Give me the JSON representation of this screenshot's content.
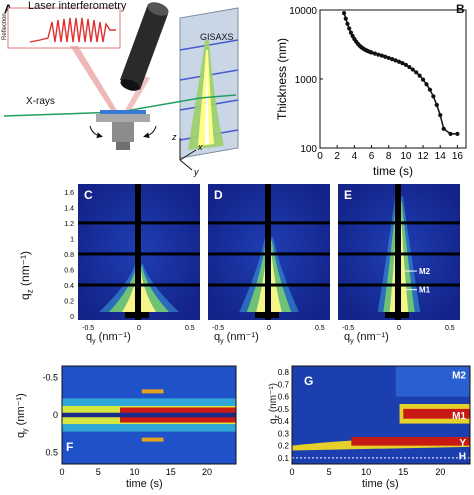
{
  "panels": {
    "A": "A",
    "B": "B",
    "C": "C",
    "D": "D",
    "E": "E",
    "F": "F",
    "G": "G"
  },
  "panel_a": {
    "laser_label": "Laser interferometry",
    "reflection_label": "Reflection",
    "gisaxs_label": "GISAXS",
    "xrays_label": "X-rays",
    "axis_z": "z",
    "axis_x": "x",
    "axis_y": "y"
  },
  "panel_cde": {
    "y_axis_label_main": "q",
    "y_axis_label_sub": "z",
    "y_axis_label_unit": " (nm⁻¹)",
    "x_axis_label_main": "q",
    "x_axis_label_sub": "y",
    "x_axis_label_unit": " (nm⁻¹)",
    "y_ticks": [
      "1.6",
      "1.4",
      "1.2",
      "1",
      "0.8",
      "0.6",
      "0.4",
      "0.2",
      "0"
    ],
    "x_ticks": [
      "-0.5",
      "0",
      "0.5"
    ],
    "marker_m1": "M1",
    "marker_m2": "M2"
  },
  "panel_f": {
    "y_axis_label_main": "q",
    "y_axis_label_sub": "y",
    "y_axis_label_unit": " (nm⁻¹)",
    "y_ticks": [
      "-0.5",
      "0",
      "0.5"
    ],
    "x_ticks": [
      "0",
      "5",
      "10",
      "15",
      "20"
    ],
    "x_label": "time (s)"
  },
  "panel_g": {
    "y_axis_label_main": "q",
    "y_axis_label_sub": "z",
    "y_axis_label_unit": " (nm⁻¹)",
    "y_ticks": [
      "0.8",
      "0.7",
      "0.6",
      "0.5",
      "0.4",
      "0.3",
      "0.2",
      "0.1"
    ],
    "x_ticks": [
      "0",
      "5",
      "10",
      "15",
      "20"
    ],
    "x_label": "time (s)",
    "labels": [
      "M2",
      "M1",
      "Y",
      "H"
    ]
  },
  "chart_data": {
    "type": "scatter",
    "title": "",
    "xlabel": "time (s)",
    "ylabel": "Thickness (nm)",
    "xlim": [
      0,
      17
    ],
    "ylim": [
      100,
      10000
    ],
    "yscale": "log",
    "x_ticks": [
      "0",
      "2",
      "4",
      "6",
      "8",
      "10",
      "12",
      "14",
      "16"
    ],
    "y_ticks": [
      "100",
      "1000",
      "10000"
    ],
    "series": [
      {
        "x": [
          2.8,
          3.0,
          3.2,
          3.4,
          3.6,
          3.8,
          4.0,
          4.2,
          4.4,
          4.6,
          4.8,
          5.0,
          5.2,
          5.4,
          5.6,
          5.8,
          6.0,
          6.4,
          6.8,
          7.2,
          7.6,
          8.0,
          8.4,
          8.8,
          9.2,
          9.6,
          10.0,
          10.4,
          10.8,
          11.2,
          11.6,
          12.0,
          12.4,
          12.8,
          13.2,
          13.6,
          14.0,
          14.4,
          15.2,
          16.0
        ],
        "y": [
          9000,
          7500,
          6300,
          5400,
          4700,
          4200,
          3800,
          3500,
          3250,
          3050,
          2900,
          2780,
          2680,
          2600,
          2530,
          2470,
          2420,
          2330,
          2250,
          2180,
          2100,
          2020,
          1940,
          1860,
          1780,
          1700,
          1600,
          1490,
          1370,
          1250,
          1120,
          980,
          840,
          700,
          560,
          420,
          300,
          190,
          160,
          160
        ]
      }
    ]
  }
}
